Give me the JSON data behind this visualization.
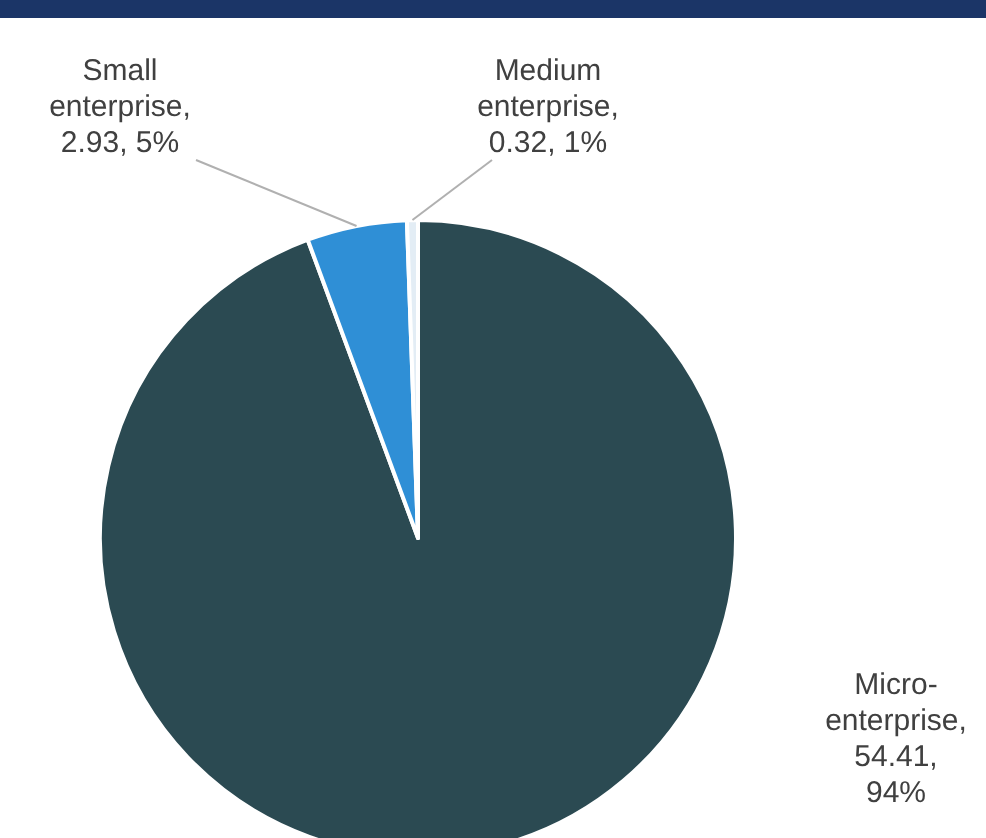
{
  "chart_data": {
    "type": "pie",
    "categories": [
      "Micro-enterprise",
      "Small enterprise",
      "Medium enterprise"
    ],
    "values": [
      54.41,
      2.93,
      0.32
    ],
    "colors": [
      "#2b4a52",
      "#2f8fd6",
      "#e3edf5"
    ],
    "value_labels": [
      ", 54.41, 94%",
      ", 2.93, 5%",
      ", 0.32, 1%"
    ]
  }
}
